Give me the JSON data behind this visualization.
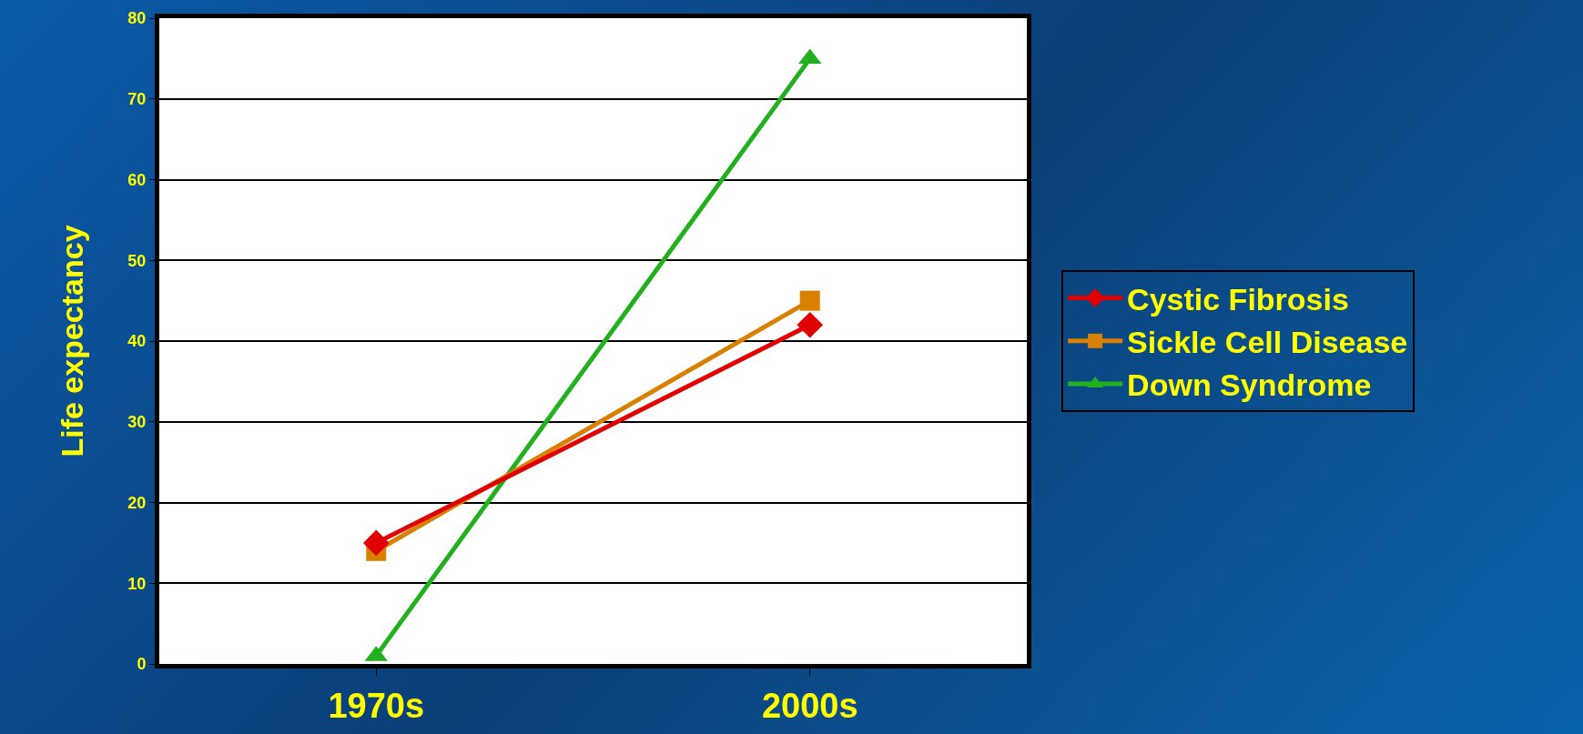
{
  "chart_data": {
    "type": "line",
    "ylabel": "Life expectancy",
    "categories": [
      "1970s",
      "2000s"
    ],
    "series": [
      {
        "name": "Cystic Fibrosis",
        "color": "#e00000",
        "marker": "diamond",
        "values": [
          15,
          42
        ]
      },
      {
        "name": "Sickle Cell Disease",
        "color": "#d98000",
        "marker": "square",
        "values": [
          14,
          45
        ]
      },
      {
        "name": "Down Syndrome",
        "color": "#22b01e",
        "marker": "triangle",
        "values": [
          1,
          75
        ]
      }
    ],
    "ylim": [
      0,
      80
    ],
    "yticks": [
      0,
      10,
      20,
      30,
      40,
      50,
      60,
      70,
      80
    ],
    "grid": "y",
    "legend": "right"
  }
}
